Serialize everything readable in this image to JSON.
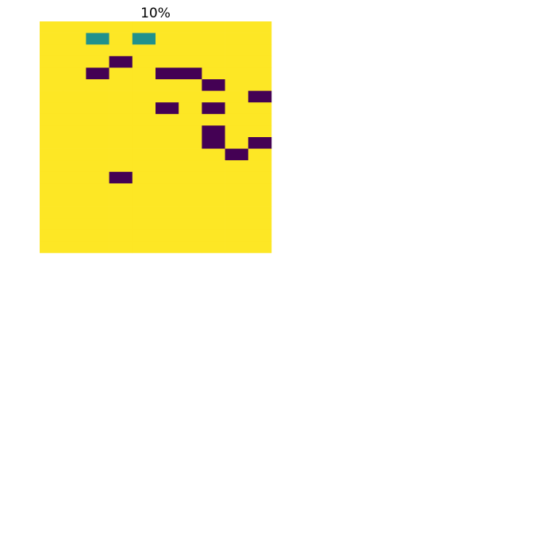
{
  "colors": {
    "0": "#440154",
    "1": "#21918c",
    "2": "#fde725"
  },
  "chart_data": [
    {
      "type": "heatmap",
      "title": "10%",
      "grid": false,
      "axes": "off",
      "colormap": "viridis",
      "legend": "none",
      "values": [
        "2222222222",
        "2212122222",
        "2222222222",
        "2220222222",
        "2202200222",
        "2222222022",
        "2222222220",
        "2222202022",
        "2222222222",
        "2222222022",
        "2222222020",
        "2222222202",
        "2222222222",
        "2220222222",
        "2222222222",
        "2222222222",
        "2222222222",
        "2222222222",
        "2222222222",
        "2222222222"
      ]
    }
  ]
}
